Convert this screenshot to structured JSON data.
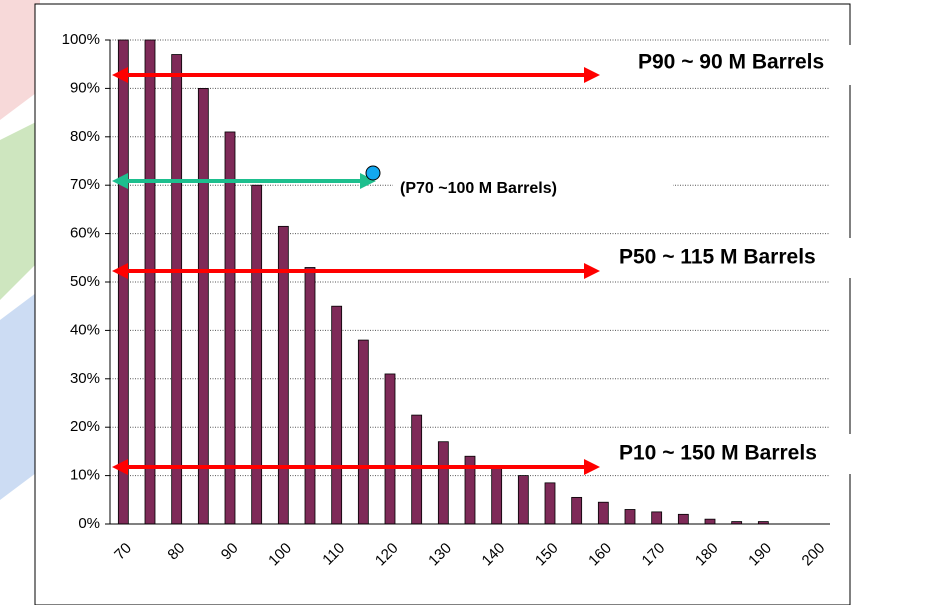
{
  "chart_data": {
    "type": "bar",
    "categories": [
      "70",
      null,
      "80",
      null,
      "90",
      null,
      "100",
      null,
      "110",
      null,
      "120",
      null,
      "130",
      null,
      "140",
      null,
      "150",
      null,
      "160",
      null,
      "170",
      null,
      "180",
      null,
      "190",
      null,
      "200"
    ],
    "values": [
      100,
      100,
      97,
      90,
      81,
      70,
      61.5,
      53,
      45,
      38,
      31,
      22.5,
      17,
      14,
      12,
      10,
      8.5,
      5.5,
      4.5,
      3,
      2.5,
      2,
      1,
      0.5,
      0.5,
      0,
      0
    ],
    "color": "#7e2a58",
    "ylim": [
      0,
      100
    ],
    "yticks": [
      {
        "value": 0,
        "label": "0%"
      },
      {
        "value": 10,
        "label": "10%"
      },
      {
        "value": 20,
        "label": "20%"
      },
      {
        "value": 30,
        "label": "30%"
      },
      {
        "value": 40,
        "label": "40%"
      },
      {
        "value": 50,
        "label": "50%"
      },
      {
        "value": 60,
        "label": "60%"
      },
      {
        "value": 70,
        "label": "70%"
      },
      {
        "value": 80,
        "label": "80%"
      },
      {
        "value": 90,
        "label": "90%"
      },
      {
        "value": 100,
        "label": "100%"
      }
    ],
    "grid": true,
    "annotations": [
      "P90 ~ 90 M Barrels",
      "(P70 ~100 M Barrels)",
      "P50 ~ 115 M Barrels",
      "P10 ~ 150 M Barrels"
    ]
  }
}
